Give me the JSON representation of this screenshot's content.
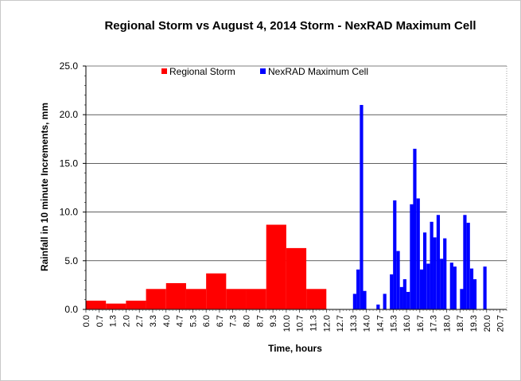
{
  "chart_data": {
    "type": "bar",
    "title": "Regional Storm vs August 4, 2014 Storm - NexRAD Maximum Cell",
    "xlabel": "Time, hours",
    "ylabel": "Rainfall in 10 minute Increments, mm",
    "ylim": [
      0,
      25
    ],
    "yticks": [
      "0.0",
      "5.0",
      "10.0",
      "15.0",
      "20.0",
      "25.0"
    ],
    "xticks": [
      "0.0",
      "0.7",
      "1.3",
      "2.0",
      "2.7",
      "3.3",
      "4.0",
      "4.7",
      "5.3",
      "6.0",
      "6.7",
      "7.3",
      "8.0",
      "8.7",
      "9.3",
      "10.0",
      "10.7",
      "11.3",
      "12.0",
      "12.7",
      "13.3",
      "14.0",
      "14.7",
      "15.3",
      "16.0",
      "16.7",
      "17.3",
      "18.0",
      "18.7",
      "19.3",
      "20.0",
      "20.7"
    ],
    "xlim": [
      0,
      21
    ],
    "legend": "top-center",
    "grid": "horizontal",
    "colors": {
      "regional": "#ff0000",
      "nexrad": "#0000ff"
    },
    "series": [
      {
        "name": "Regional Storm",
        "bar_width_hours": 1.0,
        "x_start": [
          0,
          1,
          2,
          3,
          4,
          5,
          6,
          7,
          8,
          9,
          10,
          11
        ],
        "values": [
          0.9,
          0.6,
          0.9,
          2.1,
          2.7,
          2.1,
          3.7,
          2.1,
          2.1,
          8.7,
          6.3,
          2.1
        ]
      },
      {
        "name": "NexRAD Maximum Cell",
        "bar_width_hours": 0.1667,
        "x_start": [
          13.33,
          13.5,
          13.67,
          13.83,
          14.5,
          14.83,
          15.17,
          15.33,
          15.5,
          15.67,
          15.83,
          16.0,
          16.17,
          16.33,
          16.5,
          16.67,
          16.83,
          17.0,
          17.17,
          17.33,
          17.5,
          17.67,
          17.83,
          18.17,
          18.33,
          18.67,
          18.83,
          19.0,
          19.17,
          19.33,
          19.83
        ],
        "values": [
          1.6,
          4.1,
          21.0,
          1.9,
          0.5,
          1.6,
          3.6,
          11.2,
          6.0,
          2.3,
          3.1,
          1.8,
          10.8,
          16.5,
          11.4,
          4.1,
          7.9,
          4.7,
          9.0,
          7.4,
          9.7,
          5.2,
          7.3,
          4.8,
          4.4,
          2.1,
          9.7,
          8.9,
          4.2,
          3.1,
          4.4
        ]
      }
    ]
  }
}
